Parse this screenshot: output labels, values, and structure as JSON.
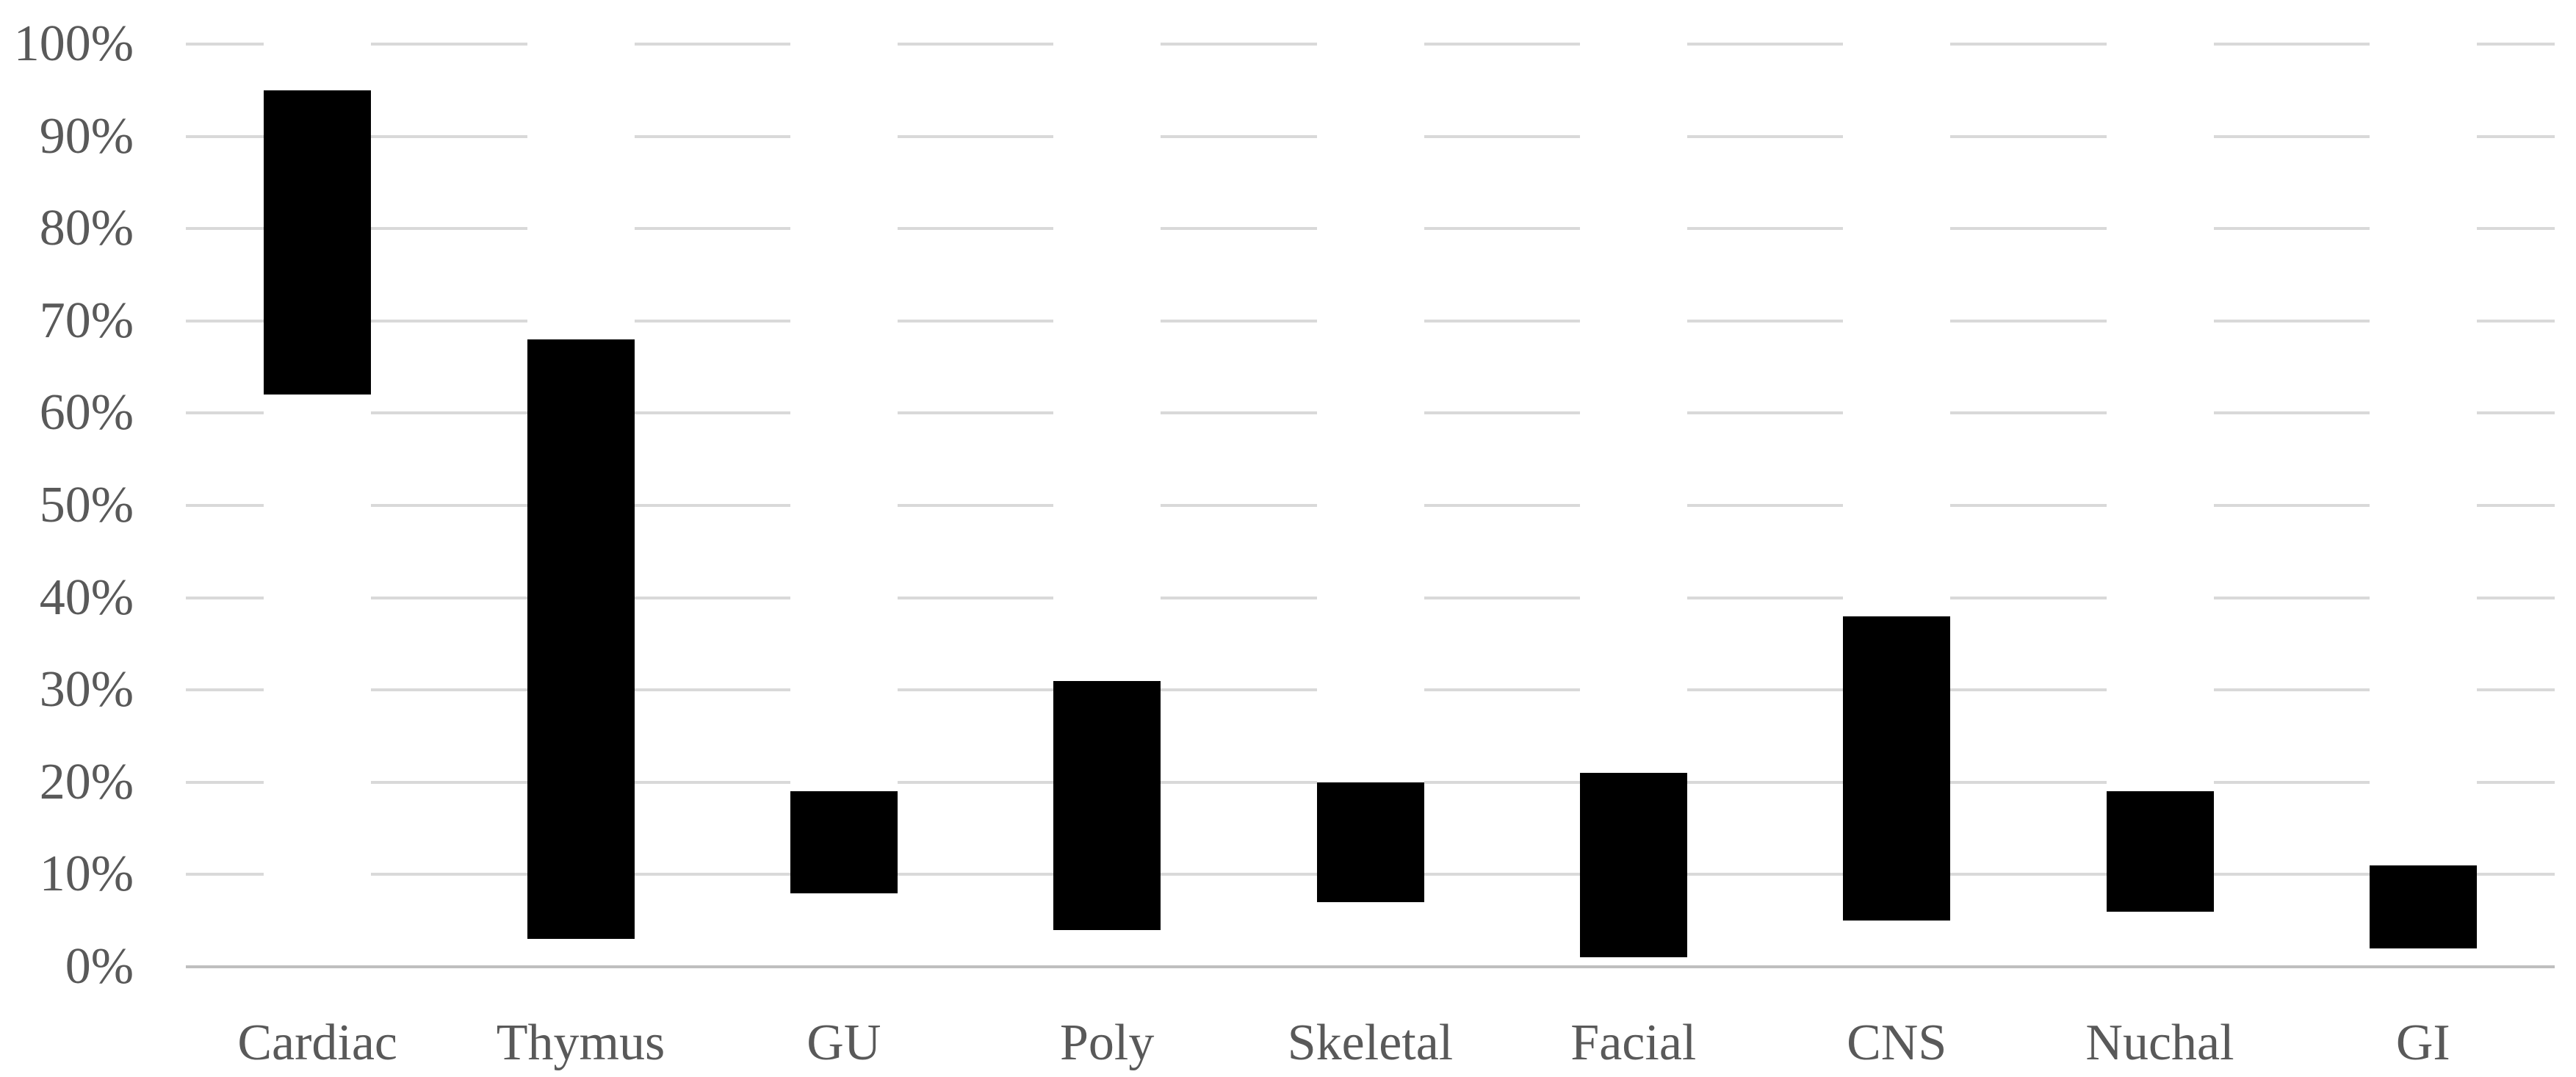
{
  "chart_data": {
    "type": "bar",
    "subtype": "floating-range-column",
    "title": "",
    "xlabel": "",
    "ylabel": "",
    "categories": [
      "Cardiac",
      "Thymus",
      "GU",
      "Poly",
      "Skeletal",
      "Facial",
      "CNS",
      "Nuchal",
      "GI"
    ],
    "series": [
      {
        "name": "range-min-max-percent",
        "ranges": [
          [
            62,
            95
          ],
          [
            3,
            68
          ],
          [
            8,
            19
          ],
          [
            4,
            31
          ],
          [
            7,
            20
          ],
          [
            1,
            21
          ],
          [
            5,
            38
          ],
          [
            6,
            19
          ],
          [
            2,
            11
          ]
        ]
      }
    ],
    "ylim": [
      0,
      100
    ],
    "ytick_step": 10,
    "yticks": [
      0,
      10,
      20,
      30,
      40,
      50,
      60,
      70,
      80,
      90,
      100
    ],
    "ytick_labels": [
      "0%",
      "10%",
      "20%",
      "30%",
      "40%",
      "50%",
      "60%",
      "70%",
      "80%",
      "90%",
      "100%"
    ],
    "grid": "horizontal",
    "legend": "none",
    "colors": {
      "bar": "#000000",
      "gridline": "#d9d9d9",
      "axis_line": "#bfbfbf",
      "label_text": "#595959",
      "background": "#ffffff"
    }
  }
}
